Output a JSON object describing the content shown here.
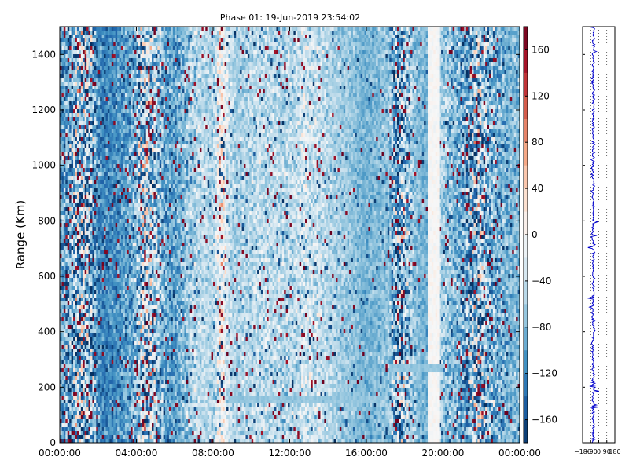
{
  "chart_data": [
    {
      "type": "heatmap",
      "title": "Phase 01: 19-Jun-2019 23:54:02",
      "xlabel": "",
      "ylabel": "Range (Km)",
      "x_tick_labels": [
        "00:00:00",
        "04:00:00",
        "08:00:00",
        "12:00:00",
        "16:00:00",
        "20:00:00",
        "00:00:00"
      ],
      "x_tick_hours": [
        0,
        4,
        8,
        12,
        16,
        20,
        24
      ],
      "xlim_hours": [
        0,
        24
      ],
      "y_ticks": [
        0,
        200,
        400,
        600,
        800,
        1000,
        1200,
        1400
      ],
      "ylim": [
        0,
        1500
      ],
      "colorbar": {
        "ticks": [
          160,
          120,
          80,
          40,
          0,
          -40,
          -80,
          -120,
          -160
        ],
        "range": [
          -180,
          180
        ],
        "colormap": "RdBu_r",
        "colors": [
          "#053061",
          "#2166ac",
          "#4393c3",
          "#92c5de",
          "#d1e5f0",
          "#f7f7f7",
          "#fddbc7",
          "#f4a582",
          "#d6604d",
          "#b2182b",
          "#67001f"
        ]
      },
      "column_profile": {
        "hours": [
          0,
          0.4,
          0.8,
          1.2,
          1.6,
          2.0,
          2.4,
          2.8,
          3.2,
          3.6,
          4.0,
          4.4,
          4.8,
          5.2,
          5.6,
          6.0,
          6.4,
          6.8,
          7.2,
          7.6,
          8.0,
          8.4,
          8.8,
          9.2,
          9.6,
          10.0,
          10.4,
          10.8,
          11.2,
          11.6,
          12.0,
          12.4,
          12.8,
          13.2,
          13.6,
          14.0,
          14.4,
          14.8,
          15.2,
          15.6,
          16.0,
          16.4,
          16.8,
          17.2,
          17.6,
          18.0,
          18.4,
          18.8,
          19.2,
          19.6,
          20.0,
          20.4,
          20.8,
          21.2,
          21.6,
          22.0,
          22.4,
          22.8,
          23.2,
          23.6
        ],
        "mean_phase_deg": [
          -95,
          -100,
          -70,
          -60,
          -75,
          -110,
          -120,
          -115,
          -105,
          -95,
          -80,
          -40,
          -55,
          -70,
          -100,
          -95,
          -85,
          -60,
          -50,
          -45,
          -60,
          10,
          -40,
          -60,
          -55,
          -50,
          -45,
          -50,
          -45,
          -55,
          -50,
          -45,
          -35,
          -40,
          -45,
          -50,
          -60,
          -65,
          -70,
          -80,
          -85,
          -80,
          -75,
          -70,
          -90,
          -60,
          -65,
          -80,
          -85,
          -20,
          -70,
          -75,
          -80,
          -95,
          -70,
          -60,
          -80,
          -85,
          -90,
          -80
        ],
        "spread_deg": [
          80,
          110,
          150,
          170,
          150,
          70,
          50,
          50,
          55,
          60,
          90,
          170,
          140,
          100,
          60,
          55,
          60,
          70,
          60,
          40,
          50,
          90,
          50,
          40,
          50,
          55,
          50,
          55,
          50,
          60,
          55,
          55,
          60,
          60,
          55,
          45,
          40,
          35,
          35,
          30,
          30,
          35,
          35,
          45,
          160,
          130,
          60,
          35,
          30,
          15,
          55,
          60,
          70,
          110,
          150,
          140,
          100,
          80,
          60,
          50
        ]
      },
      "features": [
        {
          "kind": "horizontal_band",
          "range_km": 150,
          "hours": [
            8.8,
            16.8
          ],
          "phase_deg": -70
        },
        {
          "kind": "vertical_band",
          "hours": [
            19.2,
            19.8
          ],
          "phase_deg": 0
        },
        {
          "kind": "horizontal_band",
          "range_km": 270,
          "hours": [
            17.2,
            20.0
          ],
          "phase_deg": -70
        }
      ],
      "grid": false
    },
    {
      "type": "line",
      "title": "",
      "xlabel": "",
      "ylabel": "",
      "x_tick_labels": [
        "−180",
        "−90",
        "0",
        "90",
        "180"
      ],
      "xlim": [
        -180,
        180
      ],
      "ylim": [
        0,
        1500
      ],
      "series": [
        {
          "color": "#0000cc",
          "description_points": {
            "range_km": [
              0,
              50,
              100,
              150,
              200,
              250,
              300,
              350,
              400,
              450,
              500,
              550,
              600,
              650,
              700,
              750,
              800,
              850,
              900,
              950,
              1000,
              1050,
              1100,
              1150,
              1200,
              1250,
              1300,
              1350,
              1400,
              1450,
              1500
            ],
            "phase_deg": [
              -65,
              -60,
              -62,
              -64,
              -58,
              -63,
              -61,
              -66,
              -60,
              -62,
              -64,
              -59,
              -63,
              -61,
              -60,
              -65,
              -62,
              -60,
              -63,
              -61,
              -64,
              -60,
              -62,
              -63,
              -61,
              -60,
              -62,
              -64,
              -61,
              -60,
              -62
            ]
          }
        }
      ],
      "grid": "vertical dotted"
    }
  ]
}
